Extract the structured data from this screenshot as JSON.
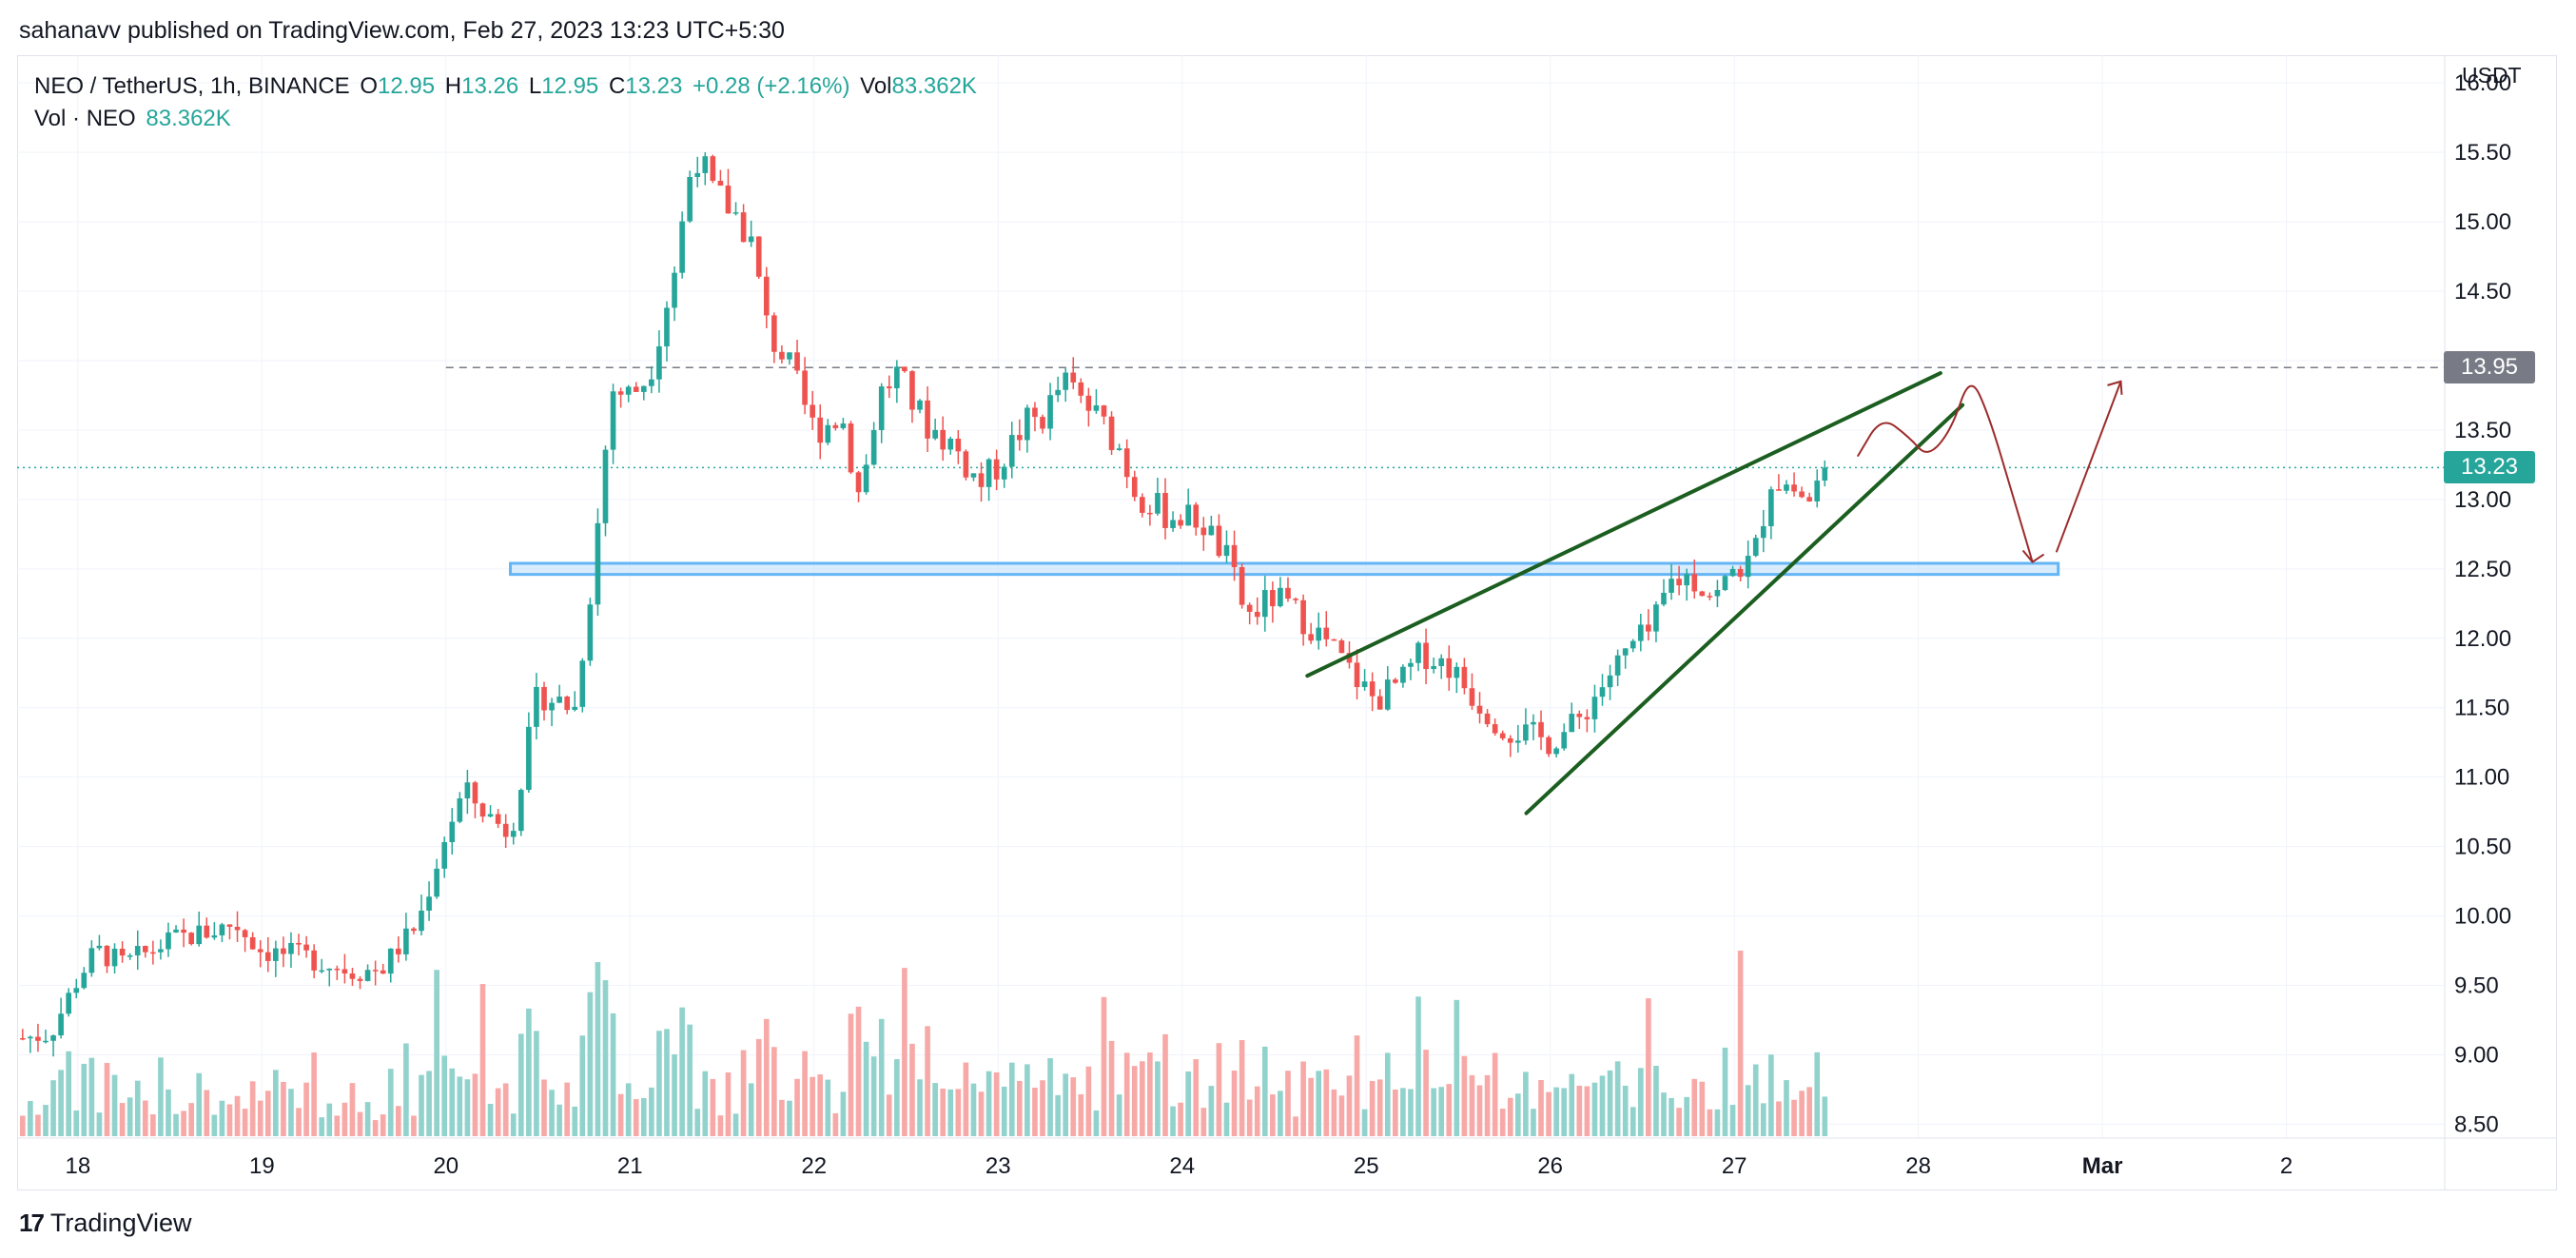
{
  "publisher_line": "sahanavv published on TradingView.com, Feb 27, 2023 13:23 UTC+5:30",
  "legend": {
    "symbol": "NEO / TetherUS, 1h, BINANCE",
    "open_label": "O",
    "open": "12.95",
    "high_label": "H",
    "high": "13.26",
    "low_label": "L",
    "low": "12.95",
    "close_label": "C",
    "close": "13.23",
    "change": "+0.28 (+2.16%)",
    "vol_label": "Vol",
    "vol": "83.362K",
    "vol_row_label": "Vol · NEO",
    "vol_row_value": "83.362K"
  },
  "price_axis_unit": "USDT",
  "footer_brand": "TradingView",
  "colors": {
    "up": "#26a69a",
    "down": "#ef5350",
    "up_volume": "#92d2cc",
    "down_volume": "#f7a9a7",
    "trendline": "#1b5e20",
    "projection": "#9c2b2b",
    "zone_fill": "#bbdefb",
    "zone_border": "#64b5f6",
    "resistance_tag": "#787b86",
    "last_price_tag": "#26a69a"
  },
  "chart_data": {
    "type": "candlestick",
    "title": "NEO / TetherUS, 1h, BINANCE",
    "y_axis": {
      "range": [
        8.4,
        16.2
      ],
      "ticks": [
        "16.00",
        "15.50",
        "15.00",
        "14.50",
        "14.00",
        "13.50",
        "13.00",
        "12.50",
        "12.00",
        "11.50",
        "11.00",
        "10.50",
        "10.00",
        "9.50",
        "9.00",
        "8.50"
      ]
    },
    "x_axis": {
      "ticks": [
        {
          "label": "18",
          "day": 18
        },
        {
          "label": "19",
          "day": 19
        },
        {
          "label": "20",
          "day": 20
        },
        {
          "label": "21",
          "day": 21
        },
        {
          "label": "22",
          "day": 22
        },
        {
          "label": "23",
          "day": 23
        },
        {
          "label": "24",
          "day": 24
        },
        {
          "label": "25",
          "day": 25
        },
        {
          "label": "26",
          "day": 26
        },
        {
          "label": "27",
          "day": 27
        },
        {
          "label": "28",
          "day": 28
        },
        {
          "label": "Mar",
          "day": 29
        },
        {
          "label": "2",
          "day": 30
        }
      ],
      "range_days": [
        17.67,
        30.86
      ]
    },
    "price_path": [
      [
        17.7,
        9.12
      ],
      [
        17.85,
        9.15
      ],
      [
        18.0,
        9.55
      ],
      [
        18.1,
        9.75
      ],
      [
        18.25,
        9.65
      ],
      [
        18.5,
        9.82
      ],
      [
        18.75,
        9.9
      ],
      [
        18.85,
        9.95
      ],
      [
        19.0,
        9.75
      ],
      [
        19.25,
        9.7
      ],
      [
        19.5,
        9.6
      ],
      [
        19.65,
        9.62
      ],
      [
        19.85,
        9.95
      ],
      [
        20.0,
        10.6
      ],
      [
        20.1,
        10.9
      ],
      [
        20.25,
        10.7
      ],
      [
        20.35,
        10.6
      ],
      [
        20.5,
        11.6
      ],
      [
        20.6,
        11.55
      ],
      [
        20.7,
        11.5
      ],
      [
        20.8,
        12.5
      ],
      [
        20.9,
        13.8
      ],
      [
        21.0,
        13.75
      ],
      [
        21.1,
        13.9
      ],
      [
        21.25,
        14.7
      ],
      [
        21.35,
        15.55
      ],
      [
        21.45,
        15.2
      ],
      [
        21.55,
        15.1
      ],
      [
        21.65,
        14.9
      ],
      [
        21.75,
        14.2
      ],
      [
        21.85,
        14.0
      ],
      [
        22.0,
        13.5
      ],
      [
        22.15,
        13.6
      ],
      [
        22.25,
        13.0
      ],
      [
        22.35,
        13.75
      ],
      [
        22.45,
        13.9
      ],
      [
        22.6,
        13.55
      ],
      [
        22.75,
        13.4
      ],
      [
        22.9,
        13.1
      ],
      [
        23.0,
        13.25
      ],
      [
        23.15,
        13.55
      ],
      [
        23.25,
        13.6
      ],
      [
        23.35,
        13.85
      ],
      [
        23.5,
        13.65
      ],
      [
        23.65,
        13.4
      ],
      [
        23.75,
        13.05
      ],
      [
        23.9,
        12.9
      ],
      [
        24.1,
        12.85
      ],
      [
        24.25,
        12.55
      ],
      [
        24.35,
        12.15
      ],
      [
        24.5,
        12.3
      ],
      [
        24.65,
        12.15
      ],
      [
        24.8,
        11.95
      ],
      [
        24.95,
        11.7
      ],
      [
        25.05,
        11.55
      ],
      [
        25.2,
        11.7
      ],
      [
        25.3,
        11.9
      ],
      [
        25.45,
        11.8
      ],
      [
        25.6,
        11.55
      ],
      [
        25.75,
        11.35
      ],
      [
        25.9,
        11.3
      ],
      [
        26.0,
        11.25
      ],
      [
        26.15,
        11.4
      ],
      [
        26.3,
        11.7
      ],
      [
        26.45,
        11.95
      ],
      [
        26.55,
        12.05
      ],
      [
        26.65,
        12.4
      ],
      [
        26.75,
        12.45
      ],
      [
        26.9,
        12.3
      ],
      [
        27.0,
        12.5
      ],
      [
        27.1,
        12.55
      ],
      [
        27.2,
        13.15
      ],
      [
        27.3,
        13.1
      ],
      [
        27.4,
        12.98
      ],
      [
        27.5,
        13.23
      ]
    ],
    "volume_range": [
      0,
      2.1
    ],
    "resistance_level": 13.95,
    "last_price": 13.23,
    "support_zone": {
      "low": 12.46,
      "high": 12.54,
      "start_day": 20.35,
      "end_day": 28.76
    },
    "trendlines": [
      {
        "name": "wedge-upper",
        "points": [
          [
            24.68,
            11.73
          ],
          [
            28.12,
            13.91
          ]
        ]
      },
      {
        "name": "wedge-lower",
        "points": [
          [
            25.87,
            10.74
          ],
          [
            28.24,
            13.68
          ]
        ]
      }
    ],
    "projection_path": [
      [
        27.67,
        13.31
      ],
      [
        27.8,
        13.6
      ],
      [
        27.95,
        13.45
      ],
      [
        28.05,
        13.3
      ],
      [
        28.18,
        13.5
      ],
      [
        28.28,
        13.9
      ],
      [
        28.38,
        13.62
      ],
      [
        28.52,
        13.0
      ],
      [
        28.62,
        12.55
      ]
    ],
    "projection_up": [
      [
        28.75,
        12.62
      ],
      [
        29.1,
        13.85
      ]
    ]
  }
}
